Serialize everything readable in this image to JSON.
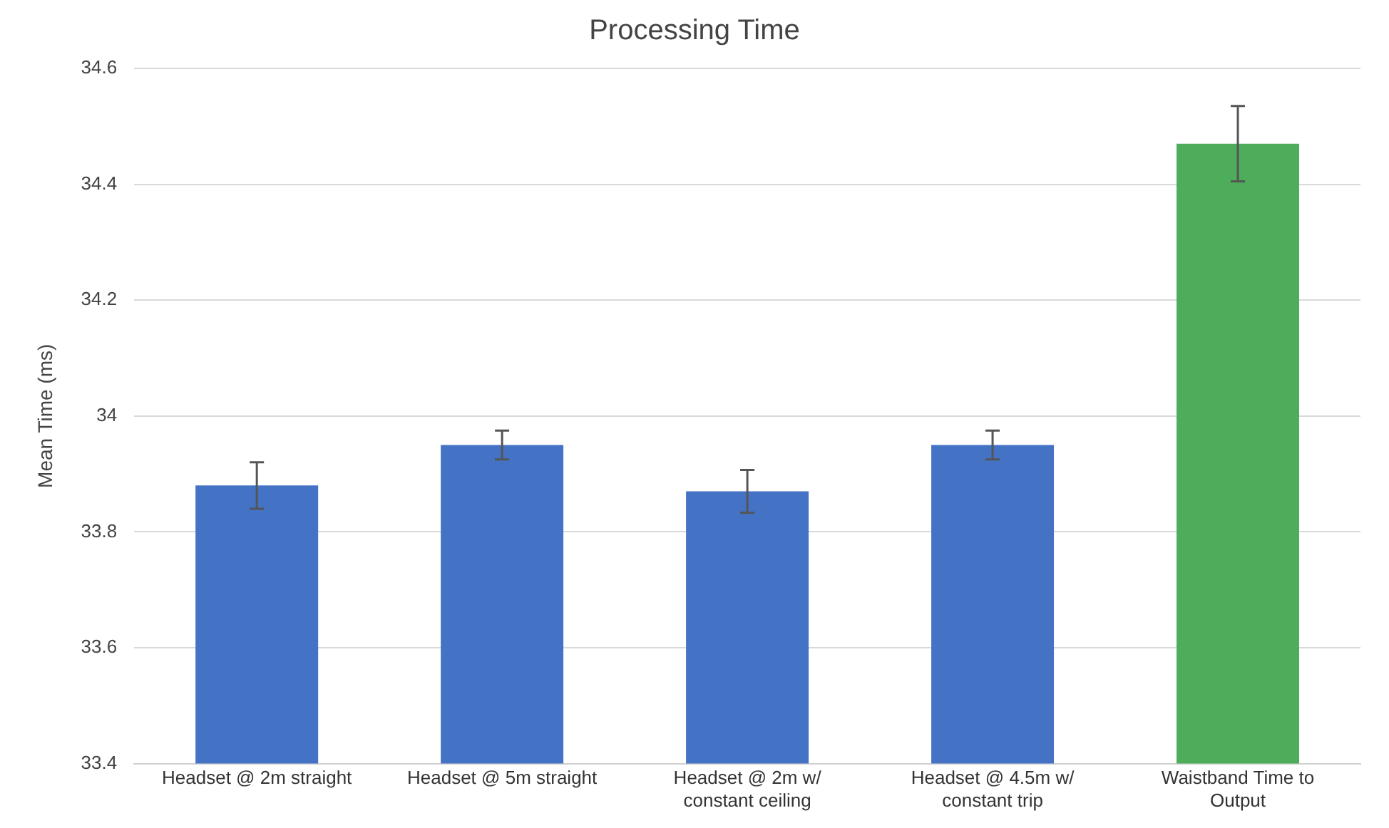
{
  "chart_data": {
    "type": "bar",
    "title": "Processing Time",
    "ylabel": "Mean Time (ms)",
    "categories": [
      "Headset @ 2m straight",
      "Headset @ 5m straight",
      "Headset @ 2m w/ constant ceiling",
      "Headset @ 4.5m w/ constant trip",
      "Waistband Time to Output"
    ],
    "values": [
      33.88,
      33.95,
      33.87,
      33.95,
      34.47
    ],
    "errors": [
      0.04,
      0.025,
      0.037,
      0.025,
      0.065
    ],
    "colors": [
      "#4472c4",
      "#4472c4",
      "#4472c4",
      "#4472c4",
      "#4ead5b"
    ],
    "ylim": [
      33.4,
      34.6
    ],
    "yticks": [
      33.4,
      33.6,
      33.8,
      34,
      34.2,
      34.4,
      34.6
    ],
    "grid": "y",
    "legend": false
  }
}
